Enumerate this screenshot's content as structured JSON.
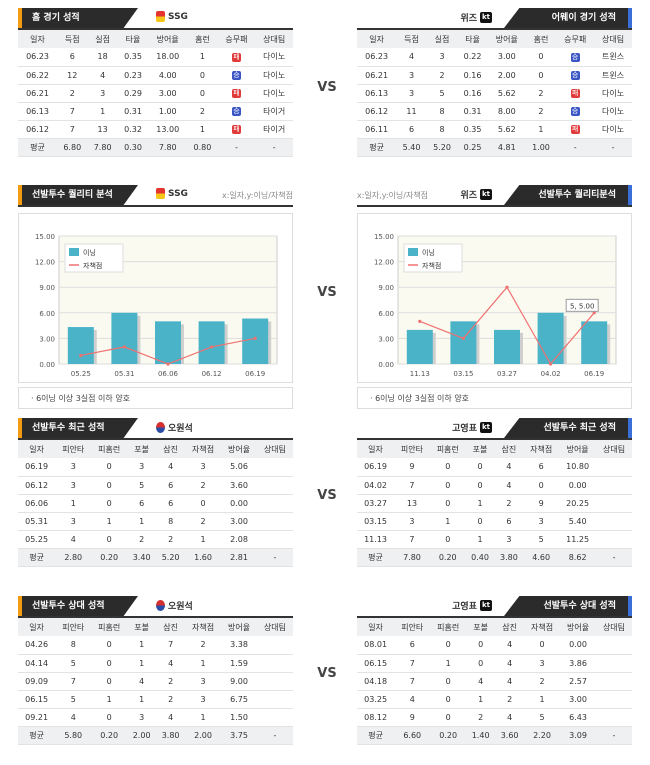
{
  "vs_label": "VS",
  "sections": {
    "home": {
      "title": "홈 경기 성적",
      "team": "SSG"
    },
    "away": {
      "title": "어웨이 경기 성적",
      "team": "위즈"
    },
    "quality_left": {
      "title": "선발투수 퀄리티 분석",
      "team": "SSG",
      "sub": "x:일자,y:이닝/자책점",
      "note": "· 6이닝 이상 3실점 이하 양호"
    },
    "quality_right": {
      "title": "선발투수 퀄리티분석",
      "team": "위즈",
      "sub": "x:일자,y:이닝/자책점",
      "note": "· 6이닝 이상 3실점 이하 양호"
    },
    "recent_left": {
      "title": "선발투수 최근 성적",
      "team": "오원석"
    },
    "recent_right": {
      "title": "선발투수 최근 성적",
      "team": "고영표"
    },
    "vs_left": {
      "title": "선발투수 상대 성적",
      "team": "오원석"
    },
    "vs_right": {
      "title": "선발투수 상대 성적",
      "team": "고영표"
    }
  },
  "team_headers": [
    "일자",
    "득점",
    "실점",
    "타율",
    "방어율",
    "홈런",
    "승무패",
    "상대팀"
  ],
  "home_rows": [
    [
      "06.23",
      "6",
      "18",
      "0.35",
      "18.00",
      "1",
      "패",
      "다이노"
    ],
    [
      "06.22",
      "12",
      "4",
      "0.23",
      "4.00",
      "0",
      "승",
      "다이노"
    ],
    [
      "06.21",
      "2",
      "3",
      "0.29",
      "3.00",
      "0",
      "패",
      "다이노"
    ],
    [
      "06.13",
      "7",
      "1",
      "0.31",
      "1.00",
      "2",
      "승",
      "타이거"
    ],
    [
      "06.12",
      "7",
      "13",
      "0.32",
      "13.00",
      "1",
      "패",
      "타이거"
    ]
  ],
  "home_avg": [
    "평균",
    "6.80",
    "7.80",
    "0.30",
    "7.80",
    "0.80",
    "-",
    "-"
  ],
  "away_rows": [
    [
      "06.23",
      "4",
      "3",
      "0.22",
      "3.00",
      "0",
      "승",
      "트윈스"
    ],
    [
      "06.21",
      "3",
      "2",
      "0.16",
      "2.00",
      "0",
      "승",
      "트윈스"
    ],
    [
      "06.13",
      "3",
      "5",
      "0.16",
      "5.62",
      "2",
      "패",
      "다이노"
    ],
    [
      "06.12",
      "11",
      "8",
      "0.31",
      "8.00",
      "2",
      "승",
      "다이노"
    ],
    [
      "06.11",
      "6",
      "8",
      "0.35",
      "5.62",
      "1",
      "패",
      "다이노"
    ]
  ],
  "away_avg": [
    "평균",
    "5.40",
    "5.20",
    "0.25",
    "4.81",
    "1.00",
    "-",
    "-"
  ],
  "pitcher_headers": [
    "일자",
    "피안타",
    "피홈런",
    "포볼",
    "삼진",
    "자책점",
    "방어율",
    "상대팀"
  ],
  "recent_left_rows": [
    [
      "06.19",
      "3",
      "0",
      "3",
      "4",
      "3",
      "5.06",
      ""
    ],
    [
      "06.12",
      "3",
      "0",
      "5",
      "6",
      "2",
      "3.60",
      ""
    ],
    [
      "06.06",
      "1",
      "0",
      "6",
      "6",
      "0",
      "0.00",
      ""
    ],
    [
      "05.31",
      "3",
      "1",
      "1",
      "8",
      "2",
      "3.00",
      ""
    ],
    [
      "05.25",
      "4",
      "0",
      "2",
      "2",
      "1",
      "2.08",
      ""
    ]
  ],
  "recent_left_avg": [
    "평균",
    "2.80",
    "0.20",
    "3.40",
    "5.20",
    "1.60",
    "2.81",
    "-"
  ],
  "recent_right_rows": [
    [
      "06.19",
      "9",
      "0",
      "0",
      "4",
      "6",
      "10.80",
      ""
    ],
    [
      "04.02",
      "7",
      "0",
      "0",
      "4",
      "0",
      "0.00",
      ""
    ],
    [
      "03.27",
      "13",
      "0",
      "1",
      "2",
      "9",
      "20.25",
      ""
    ],
    [
      "03.15",
      "3",
      "1",
      "0",
      "6",
      "3",
      "5.40",
      ""
    ],
    [
      "11.13",
      "7",
      "0",
      "1",
      "3",
      "5",
      "11.25",
      ""
    ]
  ],
  "recent_right_avg": [
    "평균",
    "7.80",
    "0.20",
    "0.40",
    "3.80",
    "4.60",
    "8.62",
    "-"
  ],
  "vs_left_rows": [
    [
      "04.26",
      "8",
      "0",
      "1",
      "7",
      "2",
      "3.38",
      ""
    ],
    [
      "04.14",
      "5",
      "0",
      "1",
      "4",
      "1",
      "1.59",
      ""
    ],
    [
      "09.09",
      "7",
      "0",
      "4",
      "2",
      "3",
      "9.00",
      ""
    ],
    [
      "06.15",
      "5",
      "1",
      "1",
      "2",
      "3",
      "6.75",
      ""
    ],
    [
      "09.21",
      "4",
      "0",
      "3",
      "4",
      "1",
      "1.50",
      ""
    ]
  ],
  "vs_left_avg": [
    "평균",
    "5.80",
    "0.20",
    "2.00",
    "3.80",
    "2.00",
    "3.75",
    "-"
  ],
  "vs_right_rows": [
    [
      "08.01",
      "6",
      "0",
      "0",
      "4",
      "0",
      "0.00",
      ""
    ],
    [
      "06.15",
      "7",
      "1",
      "0",
      "4",
      "3",
      "3.86",
      ""
    ],
    [
      "04.18",
      "7",
      "0",
      "4",
      "4",
      "2",
      "2.57",
      ""
    ],
    [
      "03.25",
      "4",
      "0",
      "1",
      "2",
      "1",
      "3.00",
      ""
    ],
    [
      "08.12",
      "9",
      "0",
      "2",
      "4",
      "5",
      "6.43",
      ""
    ]
  ],
  "vs_right_avg": [
    "평균",
    "6.60",
    "0.20",
    "1.40",
    "3.60",
    "2.20",
    "3.09",
    "-"
  ],
  "colors": {
    "bar": "#4bb3c8",
    "line": "#f07070",
    "win": "#3a56c4",
    "lose": "#e03a3a"
  },
  "chart_data": [
    {
      "type": "bar",
      "legend": [
        "이닝",
        "자책점"
      ],
      "categories": [
        "05.25",
        "05.31",
        "06.06",
        "06.12",
        "06.19"
      ],
      "series": [
        {
          "name": "이닝",
          "values": [
            4.33,
            6.0,
            5.0,
            5.0,
            5.33
          ]
        },
        {
          "name": "자책점",
          "values": [
            1,
            2,
            0,
            2,
            3
          ]
        }
      ],
      "ylim": [
        0,
        15
      ],
      "yticks": [
        "0.00",
        "3.00",
        "6.00",
        "9.00",
        "12.00",
        "15.00"
      ],
      "grid": true
    },
    {
      "type": "bar",
      "legend": [
        "이닝",
        "자책점"
      ],
      "categories": [
        "11.13",
        "03.15",
        "03.27",
        "04.02",
        "06.19"
      ],
      "series": [
        {
          "name": "이닝",
          "values": [
            4.0,
            5.0,
            4.0,
            6.0,
            5.0
          ]
        },
        {
          "name": "자책점",
          "values": [
            5,
            3,
            9,
            0,
            6
          ]
        }
      ],
      "ylim": [
        0,
        15
      ],
      "yticks": [
        "0.00",
        "3.00",
        "6.00",
        "9.00",
        "12.00",
        "15.00"
      ],
      "annotation": "5, 5.00",
      "grid": true
    }
  ]
}
